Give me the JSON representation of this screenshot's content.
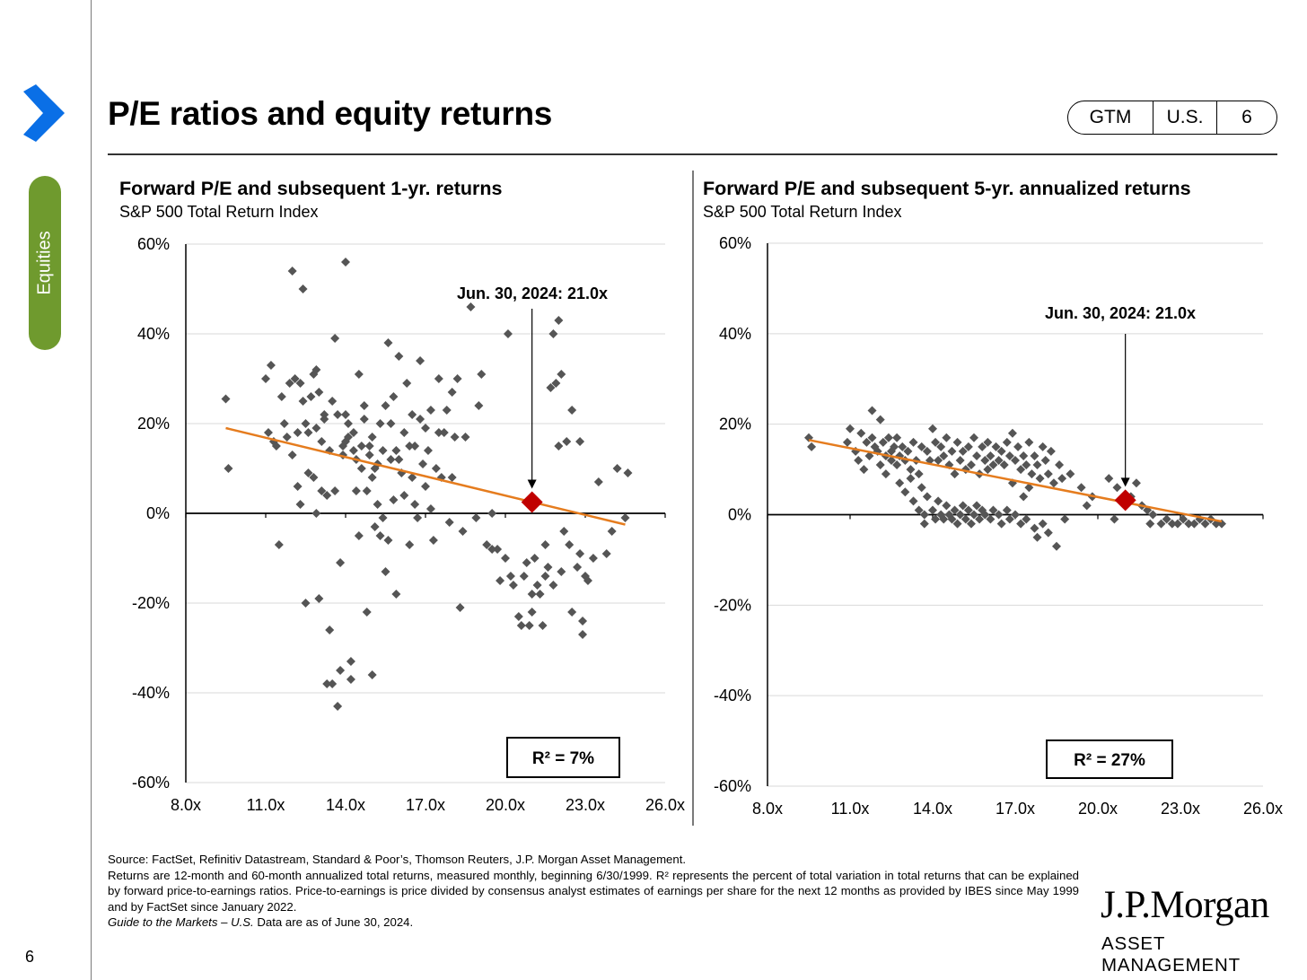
{
  "side_tab": {
    "label": "Equities"
  },
  "page": {
    "title": "P/E ratios and equity returns",
    "number": "6"
  },
  "pill": {
    "gtm": "GTM",
    "region": "U.S.",
    "page": "6"
  },
  "colors": {
    "accent_green": "#6f9a2e",
    "chevron_blue": "#0a6fe6",
    "marker": "#555555",
    "trend": "#e57c1e",
    "highlight": "#c00000"
  },
  "chart_data": [
    {
      "type": "scatter",
      "title": "Forward P/E and subsequent 1-yr. returns",
      "subtitle": "S&P 500 Total Return Index",
      "xlim": [
        8,
        26
      ],
      "ylim": [
        -60,
        60
      ],
      "x_ticks": [
        "8.0x",
        "11.0x",
        "14.0x",
        "17.0x",
        "20.0x",
        "23.0x",
        "26.0x"
      ],
      "y_ticks": [
        "60%",
        "40%",
        "20%",
        "0%",
        "-20%",
        "-40%",
        "-60%"
      ],
      "annotation": "Jun. 30, 2024: 21.0x",
      "r2_label": "R²  = 7%",
      "highlight": {
        "x": 21.0,
        "y": 2.5
      },
      "trendline": [
        [
          9.5,
          19
        ],
        [
          24.5,
          -2.5
        ]
      ],
      "points": [
        [
          9.5,
          25.5
        ],
        [
          9.6,
          10
        ],
        [
          11,
          30
        ],
        [
          11.1,
          18
        ],
        [
          11.2,
          33
        ],
        [
          11.3,
          16
        ],
        [
          11.4,
          15
        ],
        [
          11.5,
          -7
        ],
        [
          11.6,
          26
        ],
        [
          11.7,
          20
        ],
        [
          11.8,
          17
        ],
        [
          11.9,
          29
        ],
        [
          12.0,
          13
        ],
        [
          12.0,
          54
        ],
        [
          12.1,
          30
        ],
        [
          12.2,
          6
        ],
        [
          12.2,
          18
        ],
        [
          12.3,
          29
        ],
        [
          12.3,
          2
        ],
        [
          12.4,
          50
        ],
        [
          12.4,
          25
        ],
        [
          12.5,
          20
        ],
        [
          12.5,
          -20
        ],
        [
          12.6,
          18
        ],
        [
          12.6,
          9
        ],
        [
          12.7,
          26
        ],
        [
          12.8,
          8
        ],
        [
          12.8,
          31
        ],
        [
          12.9,
          19
        ],
        [
          12.9,
          0
        ],
        [
          12.9,
          32
        ],
        [
          13.0,
          -19
        ],
        [
          13.0,
          27
        ],
        [
          13.1,
          5
        ],
        [
          13.1,
          16
        ],
        [
          13.2,
          22
        ],
        [
          13.2,
          21
        ],
        [
          13.3,
          4
        ],
        [
          13.3,
          -38
        ],
        [
          13.4,
          14
        ],
        [
          13.4,
          -26
        ],
        [
          13.5,
          25
        ],
        [
          13.5,
          -38
        ],
        [
          13.6,
          5
        ],
        [
          13.6,
          39
        ],
        [
          13.7,
          -43
        ],
        [
          13.7,
          22
        ],
        [
          13.8,
          -11
        ],
        [
          13.8,
          -35
        ],
        [
          13.9,
          13
        ],
        [
          13.9,
          15
        ],
        [
          14.0,
          16
        ],
        [
          14.0,
          56
        ],
        [
          14.0,
          22
        ],
        [
          14.1,
          20
        ],
        [
          14.1,
          17
        ],
        [
          14.2,
          -33
        ],
        [
          14.2,
          -37
        ],
        [
          14.3,
          14
        ],
        [
          14.3,
          18
        ],
        [
          14.4,
          12
        ],
        [
          14.4,
          5
        ],
        [
          14.5,
          31
        ],
        [
          14.5,
          -5
        ],
        [
          14.6,
          15
        ],
        [
          14.6,
          10
        ],
        [
          14.7,
          24
        ],
        [
          14.7,
          21
        ],
        [
          14.8,
          -22
        ],
        [
          14.8,
          5
        ],
        [
          14.9,
          13
        ],
        [
          14.9,
          15
        ],
        [
          15.0,
          -36
        ],
        [
          15.0,
          8
        ],
        [
          15.0,
          17
        ],
        [
          15.1,
          10
        ],
        [
          15.1,
          -3
        ],
        [
          15.2,
          11
        ],
        [
          15.2,
          2
        ],
        [
          15.3,
          20
        ],
        [
          15.3,
          -5
        ],
        [
          15.4,
          14
        ],
        [
          15.4,
          -1
        ],
        [
          15.5,
          -13
        ],
        [
          15.5,
          24
        ],
        [
          15.6,
          38
        ],
        [
          15.6,
          -6
        ],
        [
          15.7,
          12
        ],
        [
          15.7,
          20
        ],
        [
          15.8,
          26
        ],
        [
          15.8,
          3
        ],
        [
          15.9,
          14
        ],
        [
          15.9,
          -18
        ],
        [
          16.0,
          35
        ],
        [
          16.0,
          12
        ],
        [
          16.1,
          9
        ],
        [
          16.2,
          18
        ],
        [
          16.2,
          4
        ],
        [
          16.3,
          29
        ],
        [
          16.4,
          -7
        ],
        [
          16.4,
          15
        ],
        [
          16.5,
          22
        ],
        [
          16.5,
          8
        ],
        [
          16.6,
          15
        ],
        [
          16.6,
          2
        ],
        [
          16.7,
          -1
        ],
        [
          16.8,
          34
        ],
        [
          16.8,
          21
        ],
        [
          16.9,
          11
        ],
        [
          17.0,
          19
        ],
        [
          17.0,
          6
        ],
        [
          17.1,
          14
        ],
        [
          17.2,
          1
        ],
        [
          17.2,
          23
        ],
        [
          17.3,
          -6
        ],
        [
          17.4,
          10
        ],
        [
          17.5,
          18
        ],
        [
          17.5,
          30
        ],
        [
          17.6,
          8
        ],
        [
          17.7,
          18
        ],
        [
          17.8,
          23
        ],
        [
          17.9,
          -2
        ],
        [
          18.0,
          27
        ],
        [
          18.0,
          8
        ],
        [
          18.1,
          17
        ],
        [
          18.2,
          30
        ],
        [
          18.3,
          -21
        ],
        [
          18.4,
          -4
        ],
        [
          18.5,
          17
        ],
        [
          18.7,
          46
        ],
        [
          18.9,
          -1
        ],
        [
          19.0,
          24
        ],
        [
          19.1,
          31
        ],
        [
          19.3,
          -7
        ],
        [
          19.5,
          0
        ],
        [
          19.5,
          -8
        ],
        [
          19.7,
          -8
        ],
        [
          19.8,
          -15
        ],
        [
          20.0,
          -10
        ],
        [
          20.1,
          40
        ],
        [
          20.2,
          -14
        ],
        [
          20.3,
          -16
        ],
        [
          20.5,
          -23
        ],
        [
          20.6,
          -25
        ],
        [
          20.7,
          -14
        ],
        [
          20.8,
          -11
        ],
        [
          20.9,
          -25
        ],
        [
          21.0,
          -22
        ],
        [
          21.0,
          -18
        ],
        [
          21.1,
          -10
        ],
        [
          21.2,
          -16
        ],
        [
          21.3,
          -18
        ],
        [
          21.4,
          -25
        ],
        [
          21.5,
          -14
        ],
        [
          21.5,
          -7
        ],
        [
          21.6,
          -12
        ],
        [
          21.7,
          28
        ],
        [
          21.8,
          -16
        ],
        [
          21.8,
          40
        ],
        [
          21.9,
          29
        ],
        [
          22.0,
          15
        ],
        [
          22.0,
          43
        ],
        [
          22.1,
          -13
        ],
        [
          22.1,
          31
        ],
        [
          22.2,
          -4
        ],
        [
          22.3,
          16
        ],
        [
          22.4,
          -7
        ],
        [
          22.5,
          -22
        ],
        [
          22.5,
          23
        ],
        [
          22.7,
          -12
        ],
        [
          22.8,
          -9
        ],
        [
          22.8,
          16
        ],
        [
          22.9,
          -27
        ],
        [
          22.9,
          -24
        ],
        [
          23.0,
          -14
        ],
        [
          23.1,
          -15
        ],
        [
          23.3,
          -10
        ],
        [
          23.5,
          7
        ],
        [
          23.8,
          -9
        ],
        [
          24.0,
          -4
        ],
        [
          24.2,
          10
        ],
        [
          24.5,
          -1
        ],
        [
          24.6,
          9
        ]
      ]
    },
    {
      "type": "scatter",
      "title": "Forward P/E and subsequent 5-yr. annualized returns",
      "subtitle": "S&P 500 Total Return Index",
      "xlim": [
        8,
        26
      ],
      "ylim": [
        -60,
        60
      ],
      "x_ticks": [
        "8.0x",
        "11.0x",
        "14.0x",
        "17.0x",
        "20.0x",
        "23.0x",
        "26.0x"
      ],
      "y_ticks": [
        "60%",
        "40%",
        "20%",
        "0%",
        "-20%",
        "-40%",
        "-60%"
      ],
      "annotation": "Jun. 30, 2024: 21.0x",
      "r2_label": "R²  = 27%",
      "highlight": {
        "x": 21.0,
        "y": 3.2
      },
      "trendline": [
        [
          9.5,
          16.5
        ],
        [
          24.5,
          -1.5
        ]
      ],
      "points": [
        [
          9.5,
          17
        ],
        [
          9.6,
          15
        ],
        [
          10.9,
          16
        ],
        [
          11.0,
          19
        ],
        [
          11.2,
          14
        ],
        [
          11.3,
          12
        ],
        [
          11.4,
          18
        ],
        [
          11.5,
          10
        ],
        [
          11.6,
          16
        ],
        [
          11.7,
          13
        ],
        [
          11.8,
          23
        ],
        [
          11.8,
          17
        ],
        [
          11.9,
          15
        ],
        [
          12.0,
          14
        ],
        [
          12.1,
          11
        ],
        [
          12.1,
          21
        ],
        [
          12.2,
          16
        ],
        [
          12.3,
          13
        ],
        [
          12.3,
          9
        ],
        [
          12.4,
          17
        ],
        [
          12.5,
          14
        ],
        [
          12.5,
          12
        ],
        [
          12.6,
          15
        ],
        [
          12.7,
          11
        ],
        [
          12.7,
          17
        ],
        [
          12.8,
          13
        ],
        [
          12.8,
          7
        ],
        [
          12.9,
          15
        ],
        [
          13.0,
          12
        ],
        [
          13.0,
          5
        ],
        [
          13.1,
          14
        ],
        [
          13.2,
          8
        ],
        [
          13.2,
          10
        ],
        [
          13.3,
          16
        ],
        [
          13.3,
          3
        ],
        [
          13.4,
          12
        ],
        [
          13.5,
          9
        ],
        [
          13.5,
          1
        ],
        [
          13.6,
          15
        ],
        [
          13.6,
          6
        ],
        [
          13.7,
          0
        ],
        [
          13.7,
          -2
        ],
        [
          13.8,
          14
        ],
        [
          13.8,
          4
        ],
        [
          13.9,
          12
        ],
        [
          14.0,
          19
        ],
        [
          14.0,
          1
        ],
        [
          14.1,
          16
        ],
        [
          14.1,
          -1
        ],
        [
          14.2,
          12
        ],
        [
          14.2,
          3
        ],
        [
          14.3,
          15
        ],
        [
          14.3,
          0
        ],
        [
          14.4,
          13
        ],
        [
          14.4,
          -1
        ],
        [
          14.5,
          17
        ],
        [
          14.5,
          2
        ],
        [
          14.6,
          11
        ],
        [
          14.6,
          0
        ],
        [
          14.7,
          14
        ],
        [
          14.7,
          -1
        ],
        [
          14.8,
          9
        ],
        [
          14.8,
          1
        ],
        [
          14.9,
          16
        ],
        [
          14.9,
          -2
        ],
        [
          15.0,
          12
        ],
        [
          15.0,
          0
        ],
        [
          15.1,
          14
        ],
        [
          15.1,
          2
        ],
        [
          15.2,
          10
        ],
        [
          15.2,
          -1
        ],
        [
          15.3,
          15
        ],
        [
          15.3,
          1
        ],
        [
          15.4,
          11
        ],
        [
          15.4,
          -2
        ],
        [
          15.5,
          17
        ],
        [
          15.5,
          0
        ],
        [
          15.6,
          13
        ],
        [
          15.6,
          2
        ],
        [
          15.7,
          9
        ],
        [
          15.7,
          -1
        ],
        [
          15.8,
          15
        ],
        [
          15.8,
          1
        ],
        [
          15.9,
          12
        ],
        [
          15.9,
          0
        ],
        [
          16.0,
          16
        ],
        [
          16.0,
          10
        ],
        [
          16.1,
          13
        ],
        [
          16.1,
          -1
        ],
        [
          16.2,
          11
        ],
        [
          16.2,
          1
        ],
        [
          16.3,
          15
        ],
        [
          16.4,
          12
        ],
        [
          16.4,
          0
        ],
        [
          16.5,
          14
        ],
        [
          16.5,
          -2
        ],
        [
          16.6,
          11
        ],
        [
          16.7,
          16
        ],
        [
          16.7,
          1
        ],
        [
          16.8,
          13
        ],
        [
          16.8,
          -1
        ],
        [
          16.9,
          18
        ],
        [
          16.9,
          7
        ],
        [
          17.0,
          12
        ],
        [
          17.0,
          0
        ],
        [
          17.1,
          15
        ],
        [
          17.2,
          10
        ],
        [
          17.2,
          -2
        ],
        [
          17.3,
          13
        ],
        [
          17.3,
          4
        ],
        [
          17.4,
          11
        ],
        [
          17.4,
          -1
        ],
        [
          17.5,
          16
        ],
        [
          17.5,
          6
        ],
        [
          17.6,
          9
        ],
        [
          17.7,
          13
        ],
        [
          17.7,
          -3
        ],
        [
          17.8,
          11
        ],
        [
          17.8,
          -5
        ],
        [
          17.9,
          8
        ],
        [
          18.0,
          15
        ],
        [
          18.0,
          -2
        ],
        [
          18.1,
          12
        ],
        [
          18.2,
          9
        ],
        [
          18.2,
          -4
        ],
        [
          18.3,
          14
        ],
        [
          18.4,
          7
        ],
        [
          18.5,
          -7
        ],
        [
          18.6,
          11
        ],
        [
          18.7,
          8
        ],
        [
          18.8,
          -1
        ],
        [
          19.0,
          9
        ],
        [
          19.4,
          6
        ],
        [
          19.6,
          2
        ],
        [
          19.8,
          4
        ],
        [
          20.4,
          8
        ],
        [
          20.6,
          -1
        ],
        [
          20.7,
          6
        ],
        [
          21.2,
          4
        ],
        [
          21.4,
          7
        ],
        [
          21.6,
          2
        ],
        [
          21.8,
          1
        ],
        [
          21.9,
          -2
        ],
        [
          22.0,
          0
        ],
        [
          22.3,
          -2
        ],
        [
          22.5,
          -1
        ],
        [
          22.7,
          -2
        ],
        [
          22.9,
          -2
        ],
        [
          23.1,
          -1
        ],
        [
          23.3,
          -2
        ],
        [
          23.5,
          -2
        ],
        [
          23.7,
          -1
        ],
        [
          23.9,
          -2
        ],
        [
          24.1,
          -1
        ],
        [
          24.3,
          -2
        ],
        [
          24.5,
          -2
        ]
      ]
    }
  ],
  "footnote": {
    "line1": "Source: FactSet, Refinitiv Datastream, Standard & Poor’s, Thomson Reuters, J.P. Morgan Asset Management.",
    "line2": "Returns are 12-month and 60-month annualized total returns, measured monthly, beginning 6/30/1999. R² represents the percent of total variation in total returns that can be explained by forward price-to-earnings ratios. Price-to-earnings is price divided by consensus analyst estimates of earnings per share for the next 12 months as provided by IBES since May 1999 and by FactSet since January 2022.",
    "guide_italic": "Guide to the Markets – U.S.",
    "guide_rest": " Data are as of June 30, 2024."
  },
  "logo": {
    "line1": "J.P.Morgan",
    "line2": "ASSET MANAGEMENT"
  }
}
